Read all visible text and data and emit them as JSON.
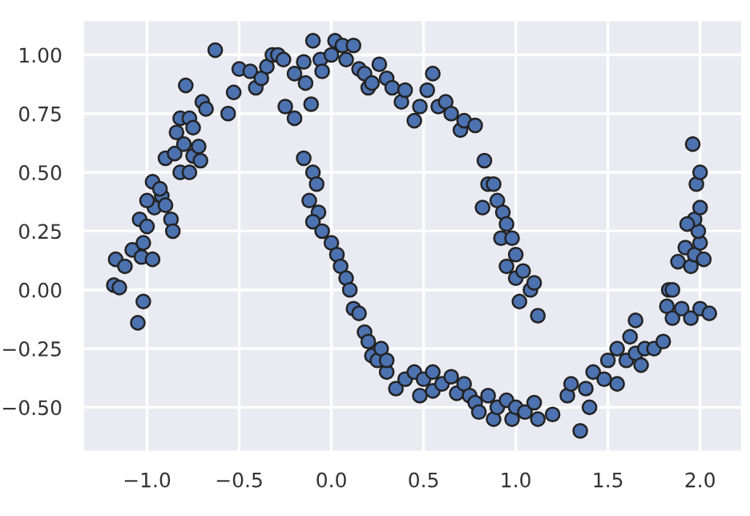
{
  "chart_data": {
    "type": "scatter",
    "marker": "circle",
    "grid": true,
    "xlim": [
      -1.35,
      2.23
    ],
    "ylim": [
      -0.69,
      1.15
    ],
    "xticks": [
      {
        "value": -1.0,
        "label": "−1.0"
      },
      {
        "value": -0.5,
        "label": "−0.5"
      },
      {
        "value": 0.0,
        "label": "0.0"
      },
      {
        "value": 0.5,
        "label": "0.5"
      },
      {
        "value": 1.0,
        "label": "1.0"
      },
      {
        "value": 1.5,
        "label": "1.5"
      },
      {
        "value": 2.0,
        "label": "2.0"
      }
    ],
    "yticks": [
      {
        "value": -0.5,
        "label": "−0.50"
      },
      {
        "value": -0.25,
        "label": "−0.25"
      },
      {
        "value": 0.0,
        "label": "0.00"
      },
      {
        "value": 0.25,
        "label": "0.25"
      },
      {
        "value": 0.5,
        "label": "0.50"
      },
      {
        "value": 0.75,
        "label": "0.75"
      },
      {
        "value": 1.0,
        "label": "1.00"
      }
    ],
    "series": [
      {
        "color": "#4c72b0",
        "x": [
          -1.18,
          -1.15,
          -1.17,
          -1.12,
          -1.08,
          -1.05,
          -1.02,
          -1.03,
          -0.97,
          -1.02,
          -1.04,
          -1.0,
          -0.96,
          -0.92,
          -1.0,
          -0.97,
          -0.93,
          -0.9,
          -0.87,
          -0.86,
          -0.9,
          -0.85,
          -0.82,
          -0.8,
          -0.77,
          -0.75,
          -0.72,
          -0.71,
          -0.84,
          -0.82,
          -0.77,
          -0.75,
          -0.79,
          -0.7,
          -0.68,
          -0.63,
          -0.56,
          -0.53,
          -0.5,
          -0.44,
          -0.41,
          -0.38,
          -0.35,
          -0.32,
          -0.29,
          -0.26,
          -0.25,
          -0.2,
          -0.2,
          -0.15,
          -0.14,
          -0.11,
          -0.1,
          -0.06,
          -0.05,
          0.0,
          0.02,
          0.06,
          0.08,
          0.12,
          0.15,
          0.18,
          0.2,
          0.22,
          0.26,
          0.3,
          0.33,
          0.38,
          0.4,
          0.45,
          0.48,
          0.52,
          0.55,
          0.58,
          0.62,
          0.65,
          0.7,
          0.72,
          0.78,
          0.83,
          0.82,
          0.85,
          0.88,
          0.9,
          0.93,
          0.95,
          0.92,
          0.98,
          1.0,
          0.95,
          1.0,
          1.04,
          1.02,
          1.08,
          1.1,
          1.12,
          -0.15,
          -0.1,
          -0.08,
          -0.12,
          -0.07,
          -0.1,
          -0.05,
          0.0,
          0.03,
          0.05,
          0.08,
          0.1,
          0.12,
          0.15,
          0.18,
          0.2,
          0.22,
          0.25,
          0.3,
          0.27,
          0.3,
          0.35,
          0.4,
          0.45,
          0.48,
          0.5,
          0.55,
          0.55,
          0.6,
          0.65,
          0.68,
          0.72,
          0.75,
          0.78,
          0.8,
          0.85,
          0.88,
          0.9,
          0.95,
          0.98,
          1.0,
          1.05,
          1.1,
          1.12,
          1.2,
          1.28,
          1.3,
          1.35,
          1.38,
          1.4,
          1.42,
          1.48,
          1.5,
          1.55,
          1.55,
          1.6,
          1.62,
          1.65,
          1.68,
          1.7,
          1.75,
          1.8,
          1.65,
          1.82,
          1.85,
          1.9,
          1.95,
          2.0,
          2.05,
          1.83,
          1.85,
          1.88,
          1.92,
          1.95,
          1.97,
          2.0,
          1.99,
          1.97,
          2.0,
          1.98,
          2.0,
          1.96,
          1.93,
          2.02
        ],
        "values": [
          0.02,
          0.01,
          0.13,
          0.1,
          0.17,
          -0.14,
          -0.05,
          0.14,
          0.13,
          0.2,
          0.3,
          0.27,
          0.35,
          0.4,
          0.38,
          0.46,
          0.43,
          0.36,
          0.3,
          0.25,
          0.56,
          0.58,
          0.5,
          0.62,
          0.5,
          0.57,
          0.61,
          0.55,
          0.67,
          0.73,
          0.73,
          0.69,
          0.87,
          0.8,
          0.77,
          1.02,
          0.75,
          0.84,
          0.94,
          0.93,
          0.86,
          0.9,
          0.95,
          1.0,
          1.0,
          0.98,
          0.78,
          0.73,
          0.92,
          0.97,
          0.88,
          0.79,
          1.06,
          0.98,
          0.93,
          1.0,
          1.06,
          1.04,
          0.98,
          1.04,
          0.94,
          0.92,
          0.86,
          0.88,
          0.96,
          0.9,
          0.86,
          0.8,
          0.85,
          0.72,
          0.78,
          0.85,
          0.92,
          0.78,
          0.8,
          0.75,
          0.68,
          0.72,
          0.7,
          0.55,
          0.35,
          0.45,
          0.45,
          0.38,
          0.33,
          0.28,
          0.22,
          0.22,
          0.15,
          0.1,
          0.05,
          0.08,
          -0.05,
          0.0,
          0.03,
          -0.11,
          0.56,
          0.5,
          0.45,
          0.38,
          0.33,
          0.29,
          0.25,
          0.2,
          0.15,
          0.1,
          0.05,
          0.0,
          -0.08,
          -0.1,
          -0.18,
          -0.22,
          -0.28,
          -0.3,
          -0.35,
          -0.25,
          -0.3,
          -0.42,
          -0.38,
          -0.35,
          -0.45,
          -0.38,
          -0.35,
          -0.43,
          -0.4,
          -0.37,
          -0.44,
          -0.4,
          -0.45,
          -0.48,
          -0.52,
          -0.45,
          -0.55,
          -0.5,
          -0.47,
          -0.55,
          -0.5,
          -0.52,
          -0.48,
          -0.55,
          -0.53,
          -0.45,
          -0.4,
          -0.6,
          -0.42,
          -0.5,
          -0.35,
          -0.38,
          -0.3,
          -0.4,
          -0.25,
          -0.3,
          -0.2,
          -0.27,
          -0.32,
          -0.25,
          -0.25,
          -0.22,
          -0.13,
          -0.07,
          -0.12,
          -0.08,
          -0.12,
          -0.08,
          -0.1,
          0.0,
          0.0,
          0.12,
          0.18,
          0.1,
          0.15,
          0.2,
          0.25,
          0.3,
          0.35,
          0.45,
          0.5,
          0.62,
          0.28,
          0.13
        ]
      }
    ]
  }
}
